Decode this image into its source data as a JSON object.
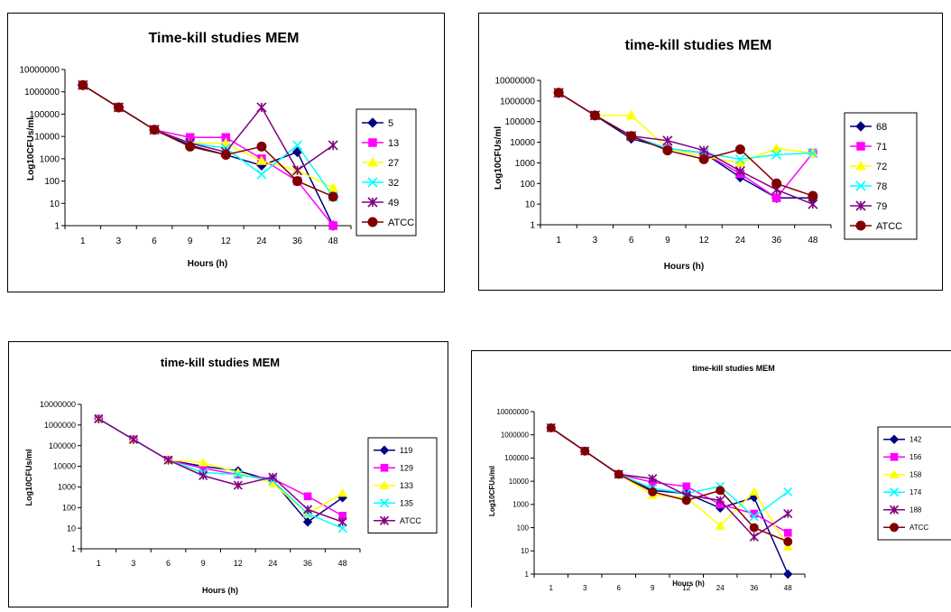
{
  "chart_data": [
    {
      "type": "line",
      "title": "Time-kill studies MEM",
      "xlabel": "Hours (h)",
      "ylabel": "Log10CFUs/ml",
      "yscale": "log",
      "ylim": [
        1,
        10000000
      ],
      "yticks": [
        "1",
        "10",
        "100",
        "1000",
        "10000",
        "100000",
        "1000000",
        "10000000"
      ],
      "categories": [
        "1",
        "3",
        "6",
        "9",
        "12",
        "24",
        "36",
        "48"
      ],
      "legend": "right",
      "series": [
        {
          "name": "5",
          "color": "#000080",
          "marker": "diamond",
          "values": [
            2000000,
            200000,
            20000,
            4000,
            1500,
            500,
            2000,
            1
          ]
        },
        {
          "name": "13",
          "color": "#FF00FF",
          "marker": "square",
          "values": [
            2000000,
            200000,
            20000,
            9000,
            9000,
            1000,
            100,
            1
          ]
        },
        {
          "name": "27",
          "color": "#FFFF00",
          "marker": "triangle",
          "values": [
            2000000,
            200000,
            20000,
            5000,
            5000,
            800,
            300,
            50
          ]
        },
        {
          "name": "32",
          "color": "#00FFFF",
          "marker": "x",
          "values": [
            2000000,
            200000,
            20000,
            5000,
            3000,
            200,
            4000,
            20
          ]
        },
        {
          "name": "49",
          "color": "#800080",
          "marker": "star",
          "values": [
            2000000,
            200000,
            20000,
            5000,
            2000,
            200000,
            300,
            4000
          ]
        },
        {
          "name": "ATCC",
          "color": "#800000",
          "marker": "circle",
          "values": [
            2000000,
            200000,
            20000,
            3500,
            1500,
            3500,
            100,
            20
          ]
        }
      ]
    },
    {
      "type": "line",
      "title": "time-kill studies MEM",
      "xlabel": "Hours (h)",
      "ylabel": "Log10CFUs/ml",
      "yscale": "log",
      "ylim": [
        1,
        10000000
      ],
      "yticks": [
        "1",
        "10",
        "100",
        "1000",
        "10000",
        "100000",
        "1000000",
        "10000000"
      ],
      "categories": [
        "1",
        "3",
        "6",
        "9",
        "12",
        "24",
        "36",
        "48"
      ],
      "legend": "right",
      "series": [
        {
          "name": "68",
          "color": "#000080",
          "marker": "diamond",
          "values": [
            2500000,
            200000,
            15000,
            5000,
            3000,
            200,
            20,
            20
          ]
        },
        {
          "name": "71",
          "color": "#FF00FF",
          "marker": "square",
          "values": [
            2500000,
            200000,
            20000,
            5000,
            3000,
            300,
            20,
            3000
          ]
        },
        {
          "name": "72",
          "color": "#FFFF00",
          "marker": "triangle",
          "values": [
            2500000,
            200000,
            200000,
            5000,
            2000,
            1000,
            5000,
            3000
          ]
        },
        {
          "name": "78",
          "color": "#00FFFF",
          "marker": "x",
          "values": [
            2500000,
            200000,
            20000,
            5000,
            3000,
            1500,
            2500,
            3000
          ]
        },
        {
          "name": "79",
          "color": "#800080",
          "marker": "star",
          "values": [
            2500000,
            200000,
            20000,
            12000,
            4000,
            400,
            50,
            10
          ]
        },
        {
          "name": "ATCC",
          "color": "#800000",
          "marker": "circle",
          "values": [
            2500000,
            200000,
            20000,
            4000,
            1500,
            4500,
            100,
            25
          ]
        }
      ]
    },
    {
      "type": "line",
      "title": "time-kill studies MEM",
      "xlabel": "Hours (h)",
      "ylabel": "Log10CFUs/ml",
      "yscale": "log",
      "ylim": [
        1,
        10000000
      ],
      "yticks": [
        "1",
        "10",
        "100",
        "1000",
        "10000",
        "100000",
        "1000000",
        "10000000"
      ],
      "categories": [
        "1",
        "3",
        "6",
        "9",
        "12",
        "24",
        "36",
        "48"
      ],
      "legend": "right",
      "series": [
        {
          "name": "119",
          "color": "#000080",
          "marker": "diamond",
          "values": [
            2000000,
            200000,
            20000,
            10000,
            6000,
            2000,
            20,
            300
          ]
        },
        {
          "name": "129",
          "color": "#FF00FF",
          "marker": "square",
          "values": [
            2000000,
            200000,
            20000,
            8000,
            4000,
            2500,
            350,
            40
          ]
        },
        {
          "name": "133",
          "color": "#FFFF00",
          "marker": "triangle",
          "values": [
            2000000,
            200000,
            20000,
            15000,
            5000,
            1500,
            50,
            500
          ]
        },
        {
          "name": "135",
          "color": "#00FFFF",
          "marker": "x",
          "values": [
            2000000,
            200000,
            20000,
            5000,
            4000,
            2000,
            50,
            10
          ]
        },
        {
          "name": "ATCC",
          "color": "#800080",
          "marker": "star",
          "values": [
            2000000,
            200000,
            20000,
            3500,
            1200,
            3000,
            80,
            20
          ]
        }
      ]
    },
    {
      "type": "line",
      "title": "time-kill studies MEM",
      "xlabel": "Hours (h)",
      "ylabel": "Log10CFUs/ml",
      "yscale": "log",
      "ylim": [
        1,
        10000000
      ],
      "yticks": [
        "1",
        "10",
        "100",
        "1000",
        "10000",
        "100000",
        "1000000",
        "10000000"
      ],
      "categories": [
        "1",
        "3",
        "6",
        "9",
        "12",
        "24",
        "36",
        "48"
      ],
      "legend": "right",
      "series": [
        {
          "name": "142",
          "color": "#000080",
          "marker": "diamond",
          "values": [
            2000000,
            200000,
            20000,
            4000,
            3000,
            700,
            2000,
            1
          ]
        },
        {
          "name": "156",
          "color": "#FF00FF",
          "marker": "square",
          "values": [
            2000000,
            200000,
            20000,
            9000,
            6000,
            1000,
            400,
            60
          ]
        },
        {
          "name": "158",
          "color": "#FFFF00",
          "marker": "triangle",
          "values": [
            2000000,
            200000,
            20000,
            2500,
            2000,
            120,
            3500,
            15
          ]
        },
        {
          "name": "174",
          "color": "#00FFFF",
          "marker": "x",
          "values": [
            2000000,
            200000,
            20000,
            5000,
            3000,
            6000,
            300,
            3500
          ]
        },
        {
          "name": "188",
          "color": "#800080",
          "marker": "star",
          "values": [
            2000000,
            200000,
            20000,
            13000,
            2500,
            1500,
            40,
            400
          ]
        },
        {
          "name": "ATCC",
          "color": "#800000",
          "marker": "circle",
          "values": [
            2000000,
            200000,
            20000,
            3500,
            1500,
            4000,
            100,
            25
          ]
        }
      ]
    }
  ]
}
